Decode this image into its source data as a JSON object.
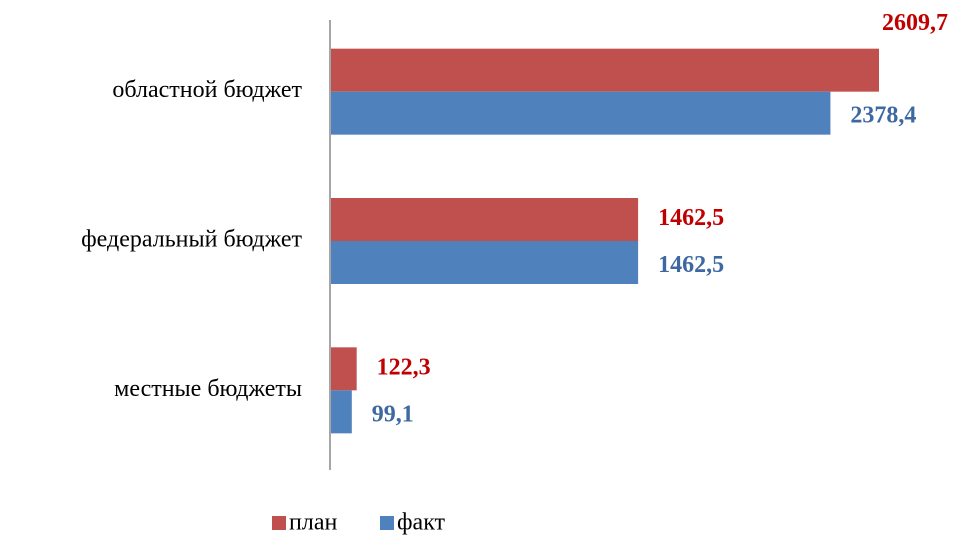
{
  "chart_data": {
    "type": "bar",
    "orientation": "horizontal",
    "categories": [
      "областной бюджет",
      "федеральный бюджет",
      "местные бюджеты"
    ],
    "series": [
      {
        "name": "план",
        "color": "#c0504d",
        "label_color": "#c00000",
        "values": [
          2609.7,
          1462.5,
          122.3
        ],
        "value_labels": [
          "2609,7",
          "1462,5",
          "122,3"
        ]
      },
      {
        "name": "факт",
        "color": "#4f81bd",
        "label_color": "#3e68a0",
        "values": [
          2378.4,
          1462.5,
          99.1
        ],
        "value_labels": [
          "2378,4",
          "1462,5",
          "99,1"
        ]
      }
    ],
    "legend": "bottom"
  }
}
